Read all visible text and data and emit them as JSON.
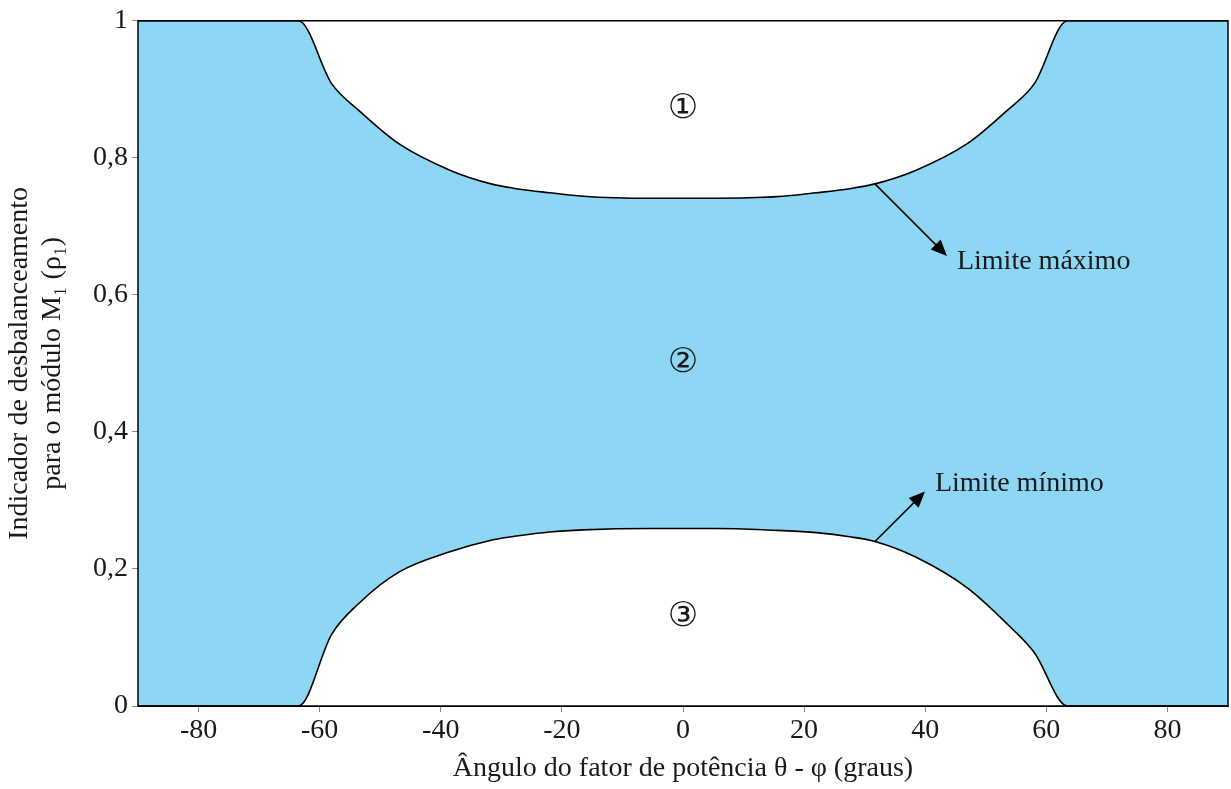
{
  "chart_data": {
    "type": "area",
    "xlabel": "Ângulo do fator de potência θ - φ (graus)",
    "ylabel": "Indicador de desbalanceamento\npara o módulo M₁ (ρ₁)",
    "x": [
      -90,
      -63.5,
      -58,
      -53.5,
      -47,
      -38.5,
      -31.7,
      -27.5,
      -22,
      -16.5,
      -5.5,
      5.5,
      16.5,
      22,
      27.5,
      31.7,
      38.5,
      47,
      53.5,
      58,
      63.5,
      90
    ],
    "series": [
      {
        "type": "line",
        "color": "#000000",
        "values": [
          0,
          0,
          0.105,
          0.15,
          0.195,
          0.225,
          0.242,
          0.248,
          0.254,
          0.257,
          0.259,
          0.259,
          0.256,
          0.253,
          0.247,
          0.24,
          0.217,
          0.172,
          0.12,
          0.078,
          0,
          0
        ]
      },
      {
        "type": "area",
        "color": "#8dd7f5",
        "values": [
          1,
          1,
          0.908,
          0.869,
          0.821,
          0.782,
          0.762,
          0.755,
          0.749,
          0.744,
          0.741,
          0.741,
          0.744,
          0.749,
          0.755,
          0.762,
          0.782,
          0.821,
          0.869,
          0.908,
          1,
          1
        ]
      }
    ],
    "xlim": [
      -90,
      90
    ],
    "xticks": [
      -80,
      -60,
      -40,
      -20,
      0,
      20,
      40,
      60,
      80
    ],
    "ylim": [
      0,
      1
    ],
    "yticks": [
      0,
      {
        "value": 0.2,
        "label": "0,2"
      },
      {
        "value": 0.4,
        "label": "0,4"
      },
      {
        "value": 0.6,
        "label": "0,6"
      },
      {
        "value": 0.8,
        "label": "0,8"
      },
      1
    ],
    "annotations": [
      "①",
      "②",
      "③",
      {
        "text": "Limite máximo",
        "x": 31.7,
        "y": 0.762
      },
      {
        "text": "Limite mínimo",
        "x": 31.7,
        "y": 0.24
      }
    ],
    "grid": false,
    "legend": false
  }
}
